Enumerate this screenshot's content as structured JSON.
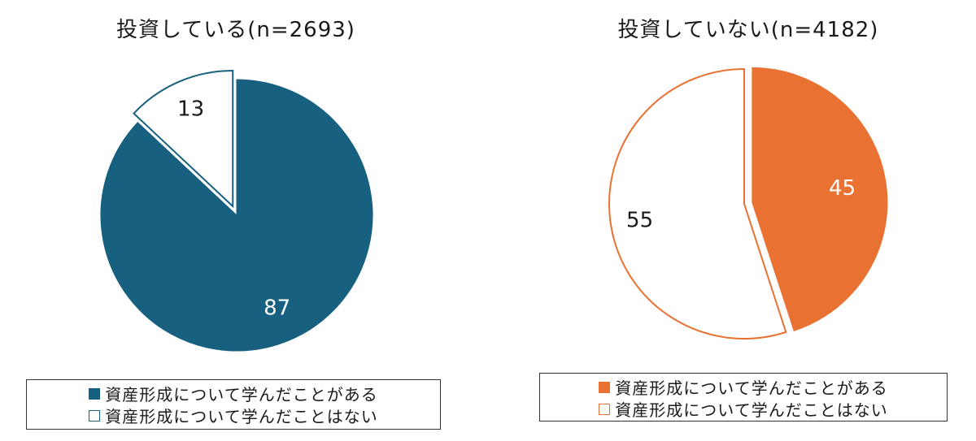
{
  "chart_data": [
    {
      "type": "pie",
      "title": "投資している(n=2693)",
      "categories": [
        "資産形成について学んだことがある",
        "資産形成について学んだことはない"
      ],
      "values": [
        87,
        13
      ],
      "labels": [
        "87",
        "13"
      ],
      "colors": [
        "#17607f",
        "#ffffff"
      ],
      "stroke": "#17607f",
      "exploded": [
        false,
        true
      ],
      "legend": "bottom"
    },
    {
      "type": "pie",
      "title": "投資していない(n=4182)",
      "categories": [
        "資産形成について学んだことがある",
        "資産形成について学んだことはない"
      ],
      "values": [
        45,
        55
      ],
      "labels": [
        "45",
        "55"
      ],
      "colors": [
        "#e97232",
        "#ffffff"
      ],
      "stroke": "#e97232",
      "exploded": [
        true,
        false
      ],
      "legend": "bottom"
    }
  ]
}
